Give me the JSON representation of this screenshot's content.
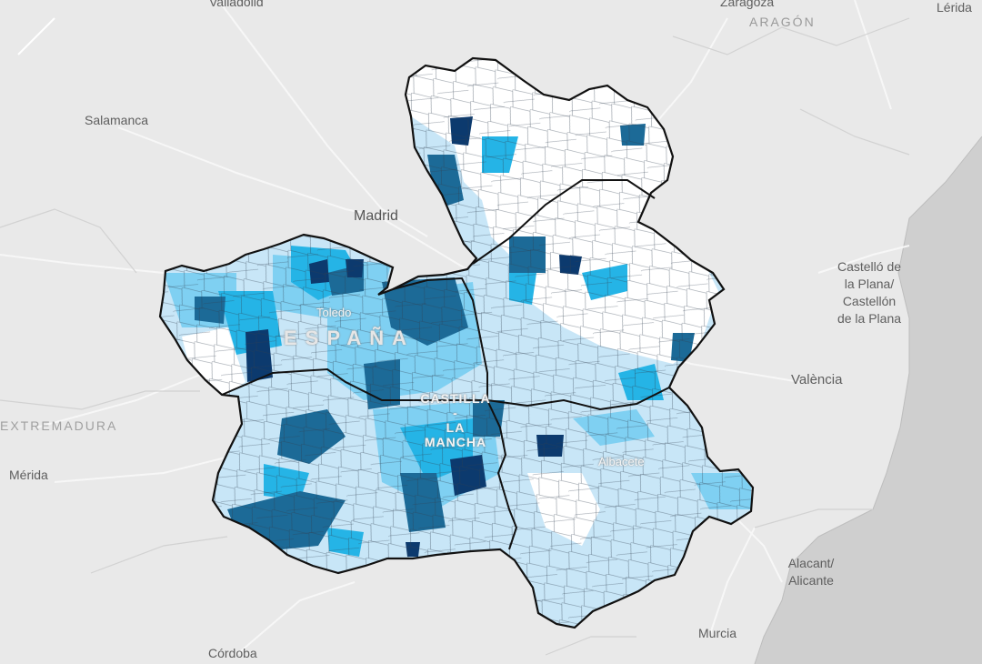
{
  "colors": {
    "land": "#e9e9e9",
    "sea": "#cfcfcf",
    "roads": "#f7f7f7",
    "borders": "#d2d2d2",
    "class_0": "#ffffff",
    "class_1": "#c8e6f7",
    "class_2": "#7fd0f2",
    "class_3": "#25b4e6",
    "class_4": "#1c6a97",
    "class_5": "#0c3a6e",
    "outline": "#111111"
  },
  "labels": {
    "valladolid": "Valladolid",
    "zaragoza": "Zaragoza",
    "aragon": "ARAGÓN",
    "lerida": "Lérida",
    "salamanca": "Salamanca",
    "madrid": "Madrid",
    "castello": "Castelló de\nla Plana/\nCastellón\nde la Plana",
    "toledo": "Toledo",
    "espana": "ESPAÑA",
    "valencia": "València",
    "castilla": "CASTILLA\n-\nLA\nMANCHA",
    "extremadura": "EXTREMADURA",
    "merida": "Mérida",
    "albacete": "Albacete",
    "alacant": "Alacant/\nAlicante",
    "murcia": "Murcia",
    "cordoba": "Córdoba"
  }
}
